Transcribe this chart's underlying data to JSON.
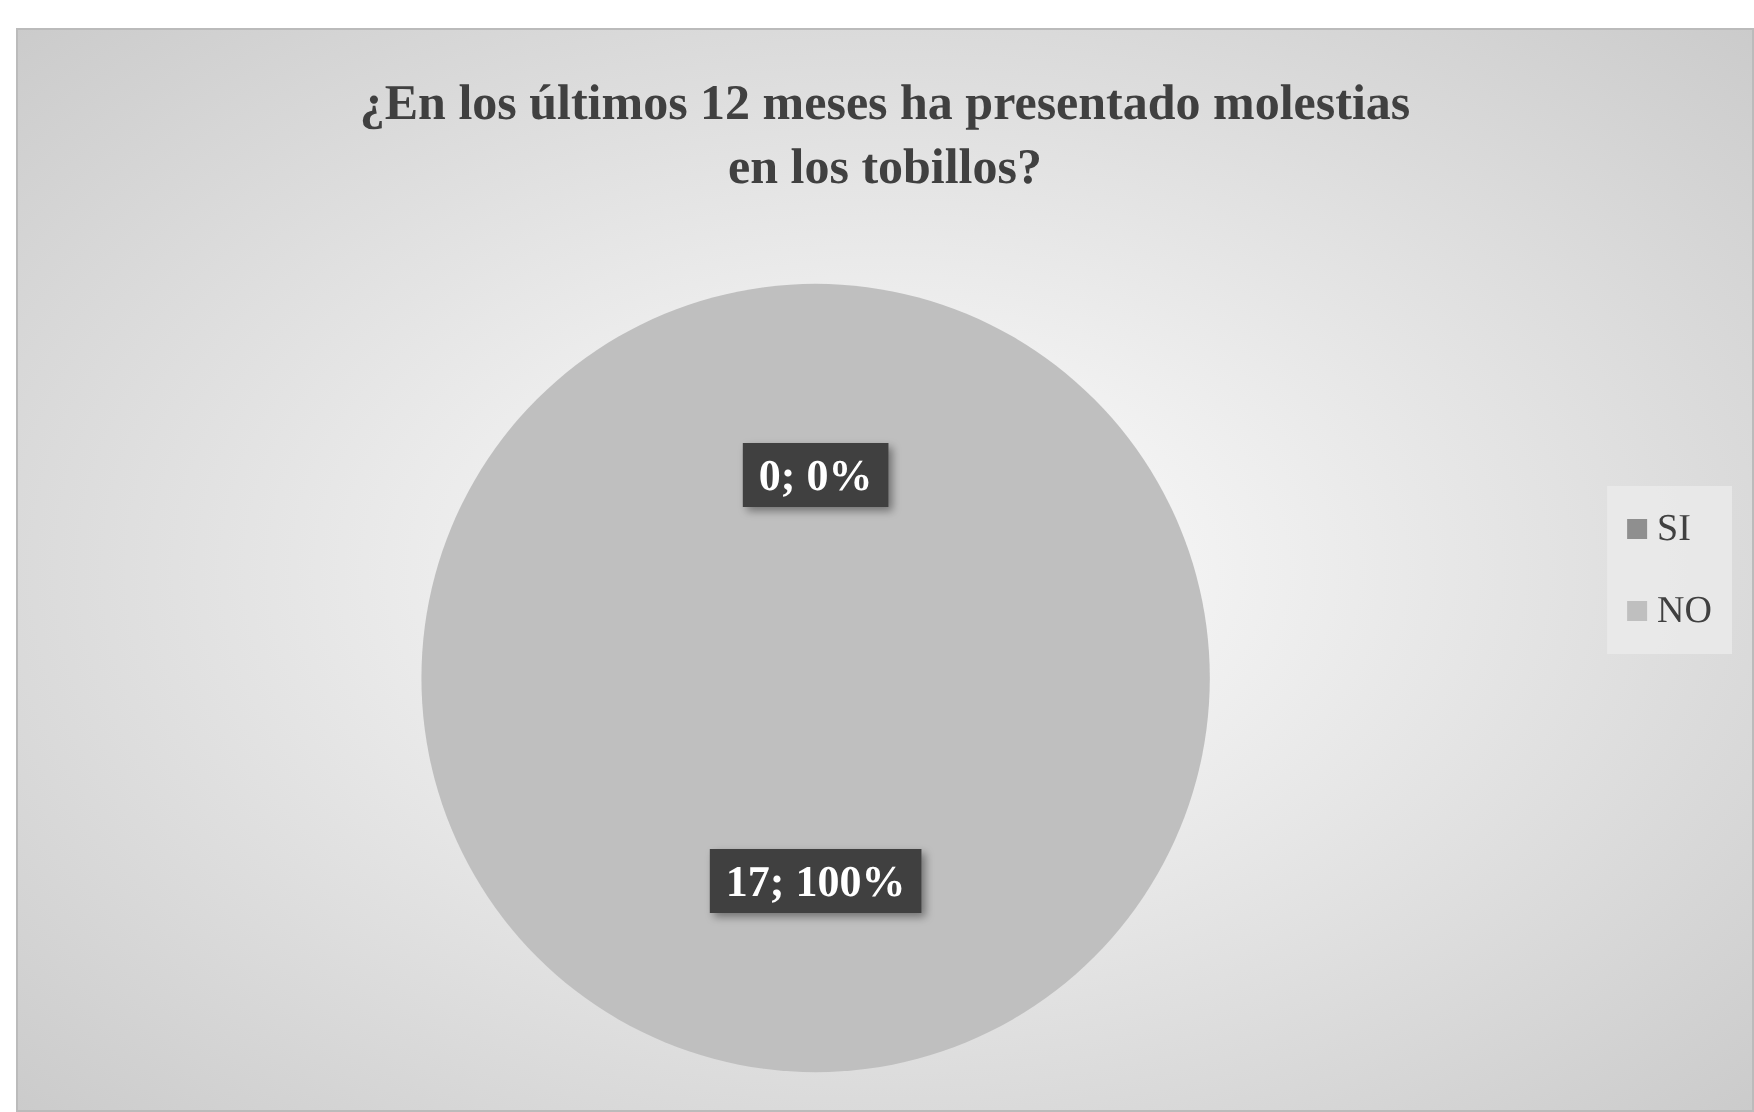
{
  "chart_data": {
    "type": "pie",
    "title": "¿En los últimos 12 meses ha presentado molestias\nen los tobillos?",
    "categories": [
      "SI",
      "NO"
    ],
    "values": [
      0,
      17
    ],
    "colors": [
      "#8f8f8f",
      "#bfbfbf"
    ],
    "value_labels": [
      "0; 0%",
      "17; 100%"
    ],
    "legend": "right"
  }
}
